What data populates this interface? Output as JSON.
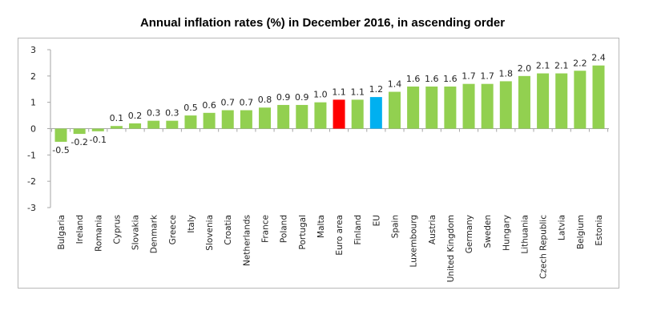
{
  "chart_data": {
    "type": "bar",
    "title": "Annual inflation rates (%) in December 2016, in ascending order",
    "xlabel": "",
    "ylabel": "",
    "ylim": [
      -3,
      3
    ],
    "yticks": [
      -3,
      -2,
      -1,
      0,
      1,
      2,
      3
    ],
    "grid": false,
    "legend": null,
    "categories": [
      "Bulgaria",
      "Ireland",
      "Romania",
      "Cyprus",
      "Slovakia",
      "Denmark",
      "Greece",
      "Italy",
      "Slovenia",
      "Croatia",
      "Netherlands",
      "France",
      "Poland",
      "Portugal",
      "Malta",
      "Euro area",
      "Finland",
      "EU",
      "Spain",
      "Luxembourg",
      "Austria",
      "United Kingdom",
      "Germany",
      "Sweden",
      "Hungary",
      "Lithuania",
      "Czech Republic",
      "Latvia",
      "Belgium",
      "Estonia"
    ],
    "values": [
      -0.5,
      -0.2,
      -0.1,
      0.1,
      0.2,
      0.3,
      0.3,
      0.5,
      0.6,
      0.7,
      0.7,
      0.8,
      0.9,
      0.9,
      1.0,
      1.1,
      1.1,
      1.2,
      1.4,
      1.6,
      1.6,
      1.6,
      1.7,
      1.7,
      1.8,
      2.0,
      2.1,
      2.1,
      2.2,
      2.4
    ],
    "data_labels": [
      "-0.5",
      "-0.2",
      "-0.1",
      "0.1",
      "0.2",
      "0.3",
      "0.3",
      "0.5",
      "0.6",
      "0.7",
      "0.7",
      "0.8",
      "0.9",
      "0.9",
      "1.0",
      "1.1",
      "1.1",
      "1.2",
      "1.4",
      "1.6",
      "1.6",
      "1.6",
      "1.7",
      "1.7",
      "1.8",
      "2.0",
      "2.1",
      "2.1",
      "2.2",
      "2.4"
    ],
    "colors": {
      "default": "#92d050",
      "Euro area": "#ff0000",
      "EU": "#00b0f0"
    },
    "axis_color": "#a6a6a6"
  }
}
